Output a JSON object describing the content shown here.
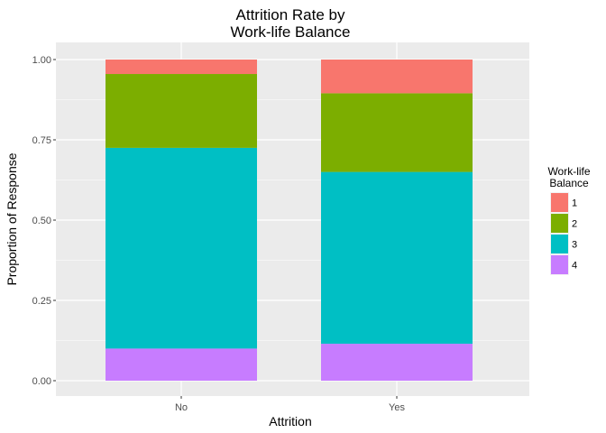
{
  "chart_data": {
    "type": "bar",
    "stacked": true,
    "title": [
      "Attrition Rate by",
      "Work-life Balance"
    ],
    "xlabel": "Attrition",
    "ylabel": "Proportion of Response",
    "categories": [
      "No",
      "Yes"
    ],
    "ylim": [
      0,
      1
    ],
    "y_ticks": [
      "0.00",
      "0.25",
      "0.50",
      "0.75",
      "1.00"
    ],
    "legend": {
      "title": [
        "Work-life",
        "Balance"
      ],
      "position": "right"
    },
    "series": [
      {
        "name": "1",
        "color": "#F8766D",
        "values": [
          0.045,
          0.105
        ]
      },
      {
        "name": "2",
        "color": "#7CAE00",
        "values": [
          0.23,
          0.245
        ]
      },
      {
        "name": "3",
        "color": "#00BFC4",
        "values": [
          0.625,
          0.535
        ]
      },
      {
        "name": "4",
        "color": "#C77CFF",
        "values": [
          0.1,
          0.115
        ]
      }
    ],
    "grid": true,
    "panel_background": "#EBEBEB"
  }
}
